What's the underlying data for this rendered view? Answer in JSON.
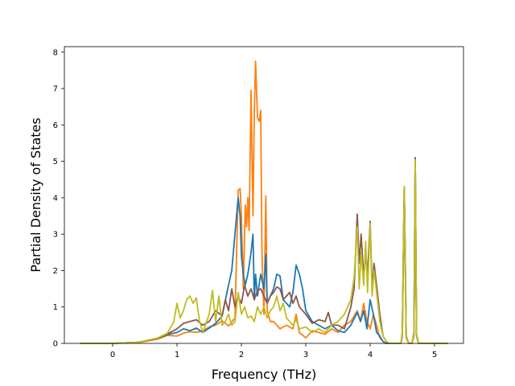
{
  "chart_data": {
    "type": "line",
    "title": "",
    "xlabel": "Frequency (THz)",
    "ylabel": "Partial Density of States",
    "xlim": [
      -0.75,
      5.45
    ],
    "ylim": [
      0,
      8.15
    ],
    "xticks": [
      "0",
      "1",
      "2",
      "3",
      "4",
      "5"
    ],
    "yticks": [
      "0",
      "1",
      "2",
      "3",
      "4",
      "5",
      "6",
      "7",
      "8"
    ],
    "grid": false,
    "legend": "none",
    "series": [
      {
        "color": "#ff7f0e",
        "x": [
          -0.5,
          0.0,
          0.4,
          0.7,
          0.85,
          1.0,
          1.1,
          1.2,
          1.3,
          1.4,
          1.5,
          1.6,
          1.7,
          1.8,
          1.9,
          1.95,
          1.98,
          2.0,
          2.03,
          2.06,
          2.08,
          2.1,
          2.12,
          2.15,
          2.18,
          2.2,
          2.22,
          2.25,
          2.28,
          2.3,
          2.32,
          2.35,
          2.38,
          2.4,
          2.45,
          2.5,
          2.6,
          2.7,
          2.8,
          2.85,
          2.9,
          3.0,
          3.1,
          3.2,
          3.3,
          3.4,
          3.5,
          3.6,
          3.7,
          3.8,
          3.85,
          3.9,
          3.95,
          4.0,
          4.05,
          4.1,
          4.15,
          4.2,
          4.25,
          4.3,
          4.4,
          4.48,
          4.5,
          4.53,
          4.56,
          4.6,
          4.65,
          4.68,
          4.7,
          4.72,
          4.75,
          4.8,
          5.0,
          5.2
        ],
        "y": [
          0,
          0,
          0.02,
          0.12,
          0.22,
          0.2,
          0.28,
          0.32,
          0.3,
          0.35,
          0.45,
          0.5,
          0.62,
          0.48,
          0.7,
          4.2,
          4.25,
          3.5,
          1.5,
          3.8,
          3.2,
          4.0,
          3.1,
          6.95,
          3.5,
          6.3,
          7.75,
          6.2,
          6.1,
          6.4,
          2.4,
          0.8,
          4.05,
          0.9,
          0.6,
          0.6,
          0.4,
          0.5,
          0.4,
          0.8,
          0.3,
          0.15,
          0.35,
          0.3,
          0.25,
          0.4,
          0.3,
          0.5,
          0.6,
          0.9,
          0.6,
          1.1,
          0.6,
          0.4,
          0.8,
          0.5,
          0.15,
          0.05,
          0.0,
          0.0,
          0.0,
          0.0,
          0.2,
          4.3,
          0.15,
          0.0,
          0.0,
          0.2,
          5.05,
          0.2,
          0.0,
          0.0,
          0.0,
          0.0
        ]
      },
      {
        "color": "#1f77b4",
        "x": [
          -0.5,
          0.0,
          0.4,
          0.7,
          0.85,
          1.0,
          1.1,
          1.2,
          1.3,
          1.4,
          1.5,
          1.6,
          1.7,
          1.8,
          1.85,
          1.9,
          1.95,
          1.98,
          2.0,
          2.03,
          2.06,
          2.1,
          2.15,
          2.18,
          2.2,
          2.22,
          2.25,
          2.3,
          2.35,
          2.38,
          2.4,
          2.45,
          2.5,
          2.55,
          2.6,
          2.65,
          2.7,
          2.75,
          2.8,
          2.85,
          2.9,
          2.95,
          3.0,
          3.1,
          3.2,
          3.3,
          3.4,
          3.5,
          3.6,
          3.7,
          3.8,
          3.85,
          3.9,
          3.95,
          4.0,
          4.05,
          4.1,
          4.15,
          4.2,
          4.25,
          4.3,
          4.4,
          4.48,
          4.5,
          4.53,
          4.56,
          4.6,
          4.65,
          4.68,
          4.7,
          4.72,
          4.75,
          4.8,
          5.0,
          5.2
        ],
        "y": [
          0,
          0,
          0.03,
          0.14,
          0.24,
          0.3,
          0.4,
          0.35,
          0.42,
          0.3,
          0.42,
          0.55,
          0.75,
          1.6,
          2.0,
          3.0,
          4.0,
          3.5,
          2.4,
          1.9,
          1.6,
          1.9,
          2.5,
          3.0,
          1.2,
          1.9,
          1.3,
          1.9,
          1.5,
          2.45,
          1.1,
          1.3,
          1.5,
          1.9,
          1.85,
          1.2,
          1.1,
          1.0,
          1.4,
          2.15,
          1.9,
          1.5,
          0.9,
          0.6,
          0.5,
          0.4,
          0.5,
          0.35,
          0.3,
          0.5,
          0.85,
          0.6,
          0.9,
          0.4,
          1.2,
          0.8,
          0.3,
          0.2,
          0.05,
          0.0,
          0.0,
          0.0,
          0.0,
          0.3,
          4.3,
          0.2,
          0.0,
          0.0,
          0.3,
          5.1,
          0.25,
          0.0,
          0.0,
          0.0,
          0.0
        ]
      },
      {
        "color": "#8c564b",
        "x": [
          -0.5,
          0.0,
          0.4,
          0.7,
          0.85,
          1.0,
          1.1,
          1.2,
          1.3,
          1.4,
          1.5,
          1.6,
          1.7,
          1.75,
          1.8,
          1.85,
          1.9,
          1.95,
          2.0,
          2.05,
          2.1,
          2.15,
          2.2,
          2.25,
          2.3,
          2.35,
          2.4,
          2.45,
          2.5,
          2.55,
          2.6,
          2.65,
          2.7,
          2.75,
          2.8,
          2.85,
          2.9,
          3.0,
          3.1,
          3.2,
          3.3,
          3.35,
          3.4,
          3.5,
          3.6,
          3.7,
          3.75,
          3.8,
          3.83,
          3.86,
          3.9,
          3.93,
          3.96,
          4.0,
          4.03,
          4.06,
          4.1,
          4.15,
          4.2,
          4.25,
          4.3,
          4.4,
          4.48,
          4.5,
          4.53,
          4.56,
          4.6,
          4.65,
          4.68,
          4.7,
          4.72,
          4.75,
          4.8,
          5.0,
          5.2
        ],
        "y": [
          0,
          0,
          0.03,
          0.14,
          0.26,
          0.4,
          0.55,
          0.6,
          0.65,
          0.5,
          0.6,
          0.9,
          0.75,
          1.2,
          0.9,
          1.5,
          1.0,
          1.3,
          1.1,
          1.6,
          1.3,
          1.5,
          1.2,
          1.45,
          1.5,
          1.3,
          1.1,
          1.3,
          1.4,
          1.55,
          1.5,
          1.2,
          1.3,
          1.4,
          1.1,
          1.3,
          1.0,
          0.8,
          0.55,
          0.65,
          0.6,
          0.85,
          0.5,
          0.5,
          0.4,
          1.0,
          1.5,
          3.55,
          2.2,
          3.0,
          1.8,
          2.5,
          1.9,
          3.35,
          1.5,
          2.2,
          1.6,
          0.8,
          0.2,
          0.05,
          0.0,
          0.0,
          0.0,
          0.3,
          4.3,
          0.2,
          0.0,
          0.0,
          0.3,
          5.1,
          0.25,
          0.0,
          0.0,
          0.0,
          0.0
        ]
      },
      {
        "color": "#bcbd22",
        "x": [
          -0.5,
          0.0,
          0.4,
          0.7,
          0.85,
          0.95,
          1.0,
          1.05,
          1.1,
          1.15,
          1.2,
          1.25,
          1.3,
          1.35,
          1.4,
          1.5,
          1.55,
          1.6,
          1.65,
          1.7,
          1.75,
          1.8,
          1.85,
          1.9,
          1.95,
          2.0,
          2.05,
          2.1,
          2.15,
          2.2,
          2.25,
          2.3,
          2.35,
          2.4,
          2.45,
          2.5,
          2.55,
          2.6,
          2.65,
          2.7,
          2.75,
          2.8,
          2.85,
          2.9,
          3.0,
          3.1,
          3.2,
          3.3,
          3.4,
          3.5,
          3.6,
          3.7,
          3.75,
          3.8,
          3.83,
          3.86,
          3.9,
          3.93,
          3.96,
          4.0,
          4.03,
          4.06,
          4.1,
          4.15,
          4.2,
          4.25,
          4.3,
          4.4,
          4.48,
          4.5,
          4.53,
          4.56,
          4.6,
          4.65,
          4.68,
          4.7,
          4.72,
          4.75,
          4.8,
          5.0,
          5.2
        ],
        "y": [
          0,
          0,
          0.03,
          0.15,
          0.28,
          0.6,
          1.1,
          0.7,
          0.9,
          1.2,
          1.3,
          1.1,
          1.25,
          0.6,
          0.3,
          0.8,
          1.45,
          0.6,
          1.3,
          0.5,
          0.6,
          0.8,
          0.5,
          0.6,
          1.4,
          0.8,
          1.0,
          0.7,
          0.75,
          0.6,
          1.0,
          0.8,
          1.0,
          0.7,
          0.9,
          1.0,
          1.3,
          0.9,
          1.1,
          0.7,
          0.6,
          0.5,
          0.65,
          0.4,
          0.45,
          0.3,
          0.4,
          0.3,
          0.5,
          0.6,
          0.8,
          1.2,
          1.8,
          3.2,
          1.5,
          2.5,
          1.6,
          2.8,
          1.4,
          3.3,
          1.3,
          2.0,
          1.4,
          0.6,
          0.2,
          0.05,
          0.0,
          0.0,
          0.0,
          0.3,
          4.3,
          0.2,
          0.0,
          0.0,
          0.3,
          5.05,
          0.25,
          0.0,
          0.0,
          0.0,
          0.0
        ]
      }
    ]
  }
}
